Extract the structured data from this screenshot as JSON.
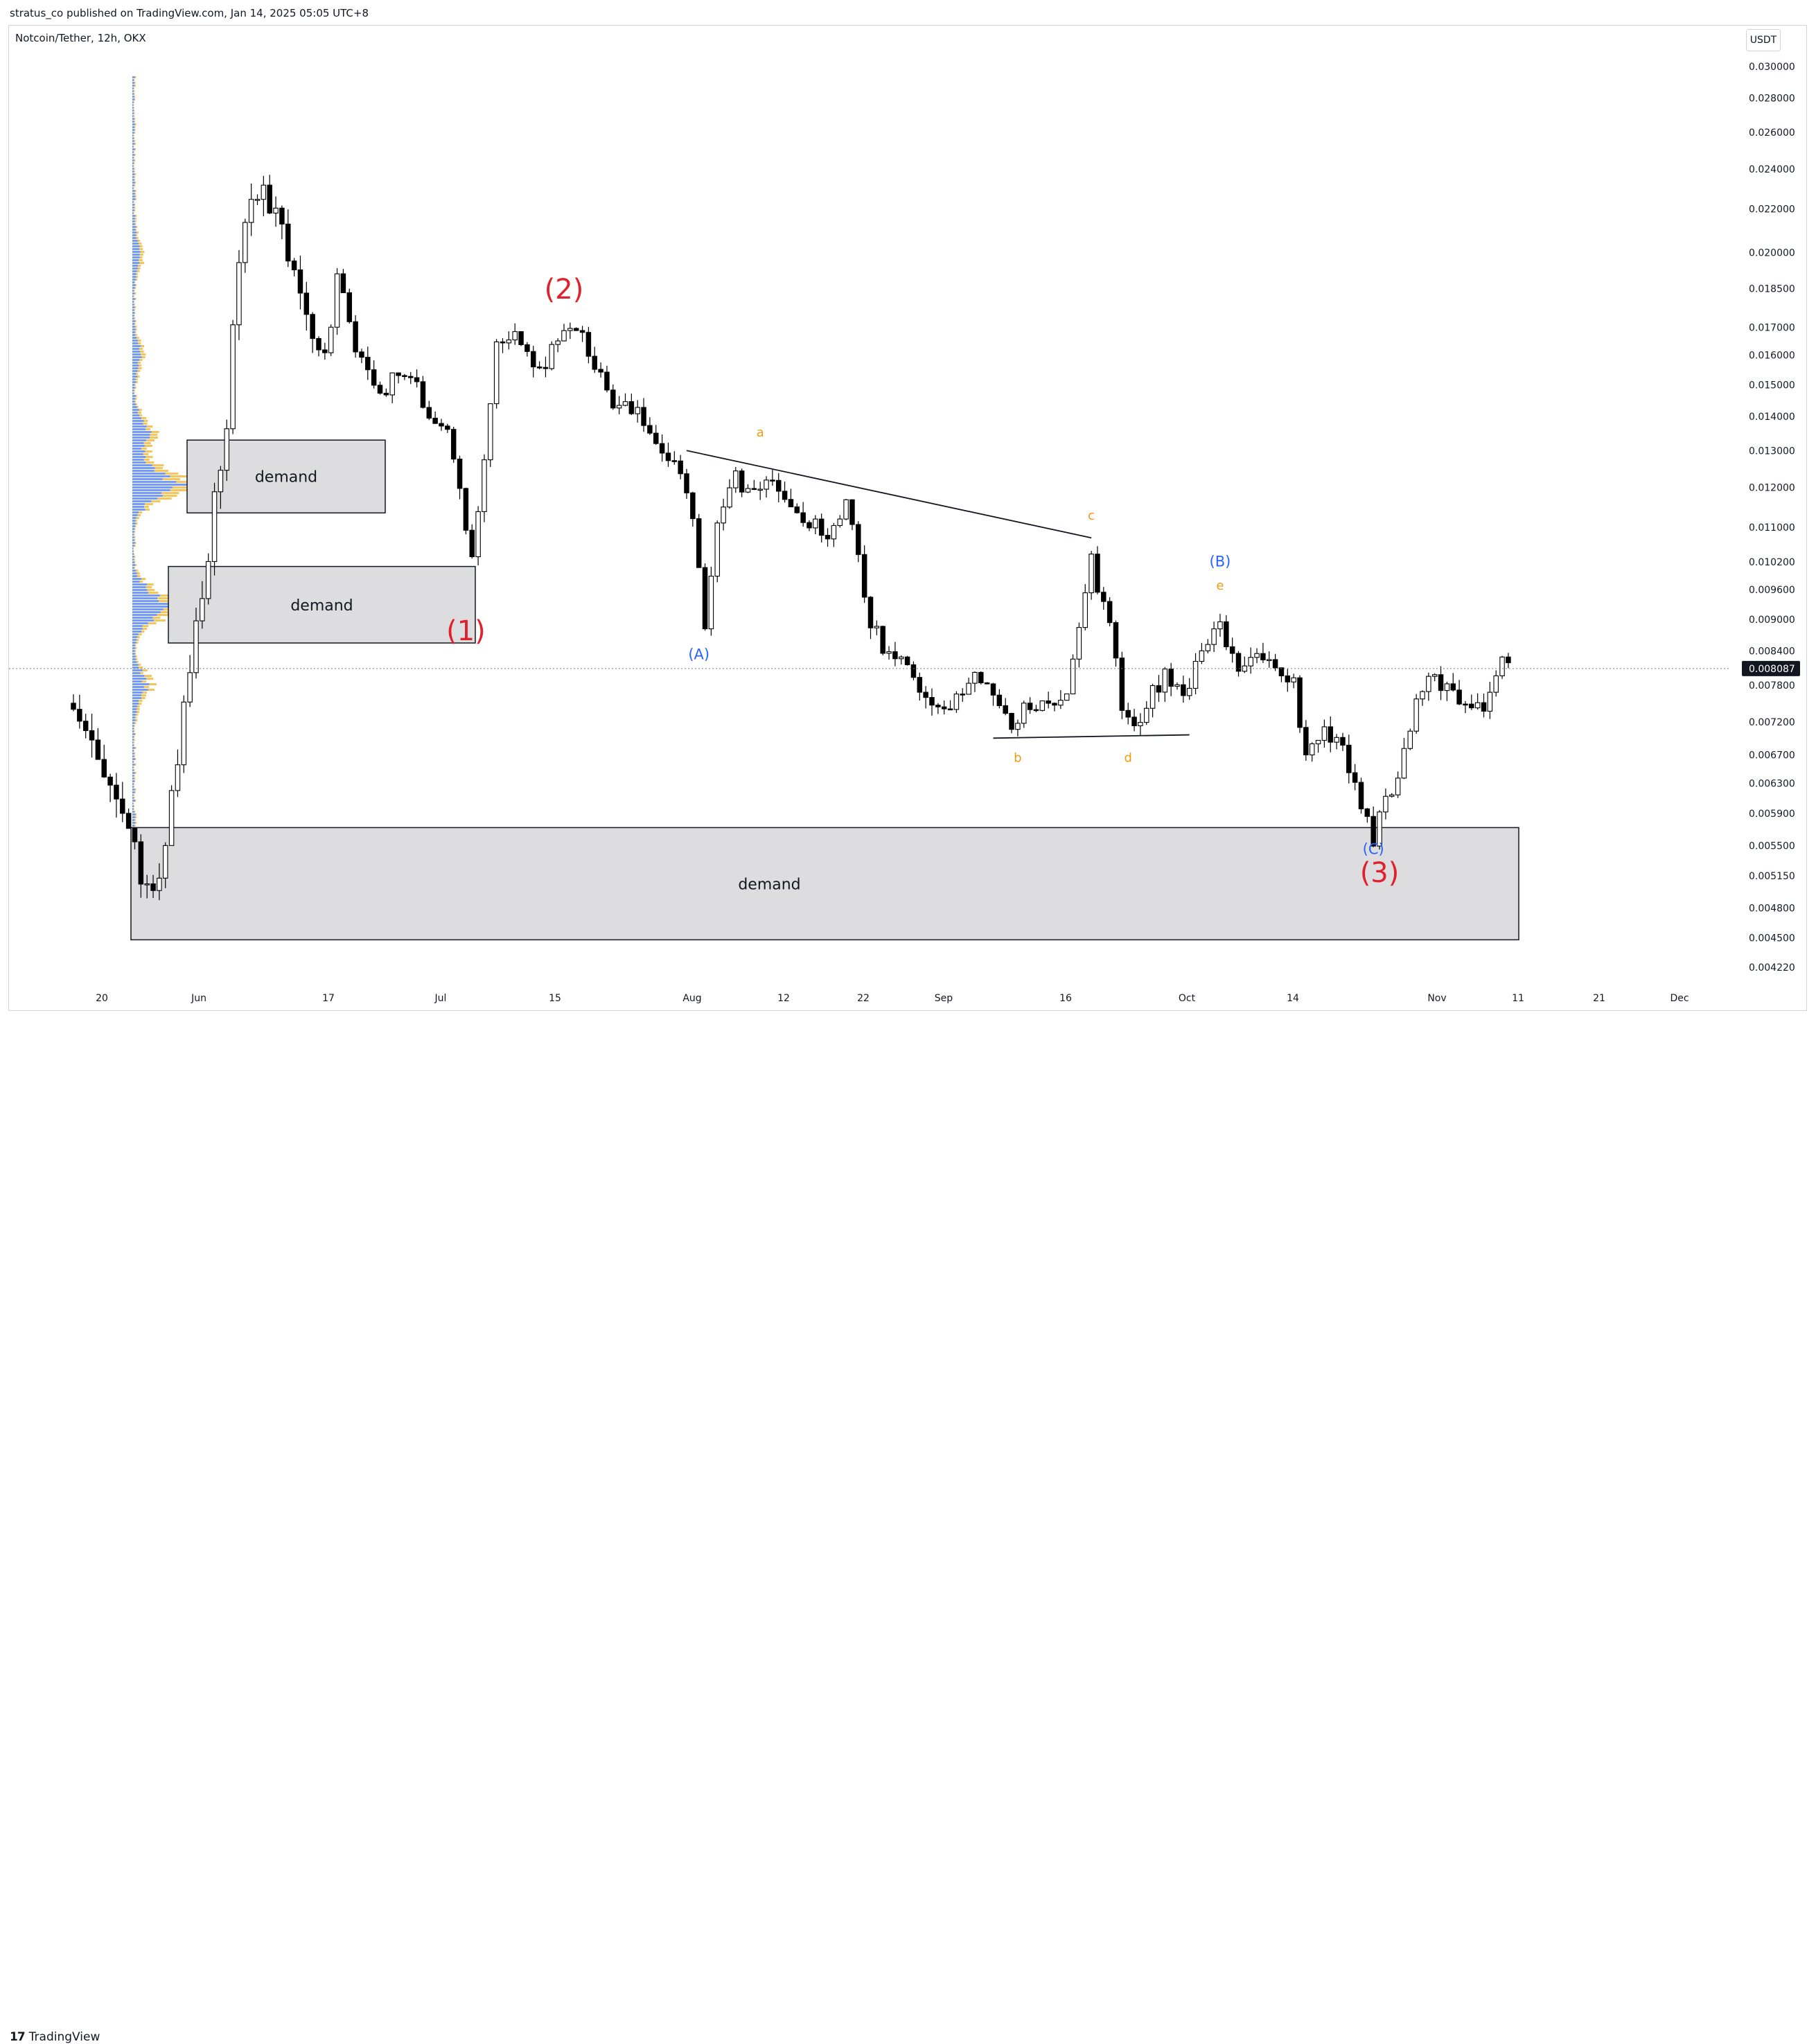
{
  "header": {
    "publisher": "stratus_co published on TradingView.com, Jan 14, 2025 05:05 UTC+8",
    "symbol": "Notcoin/Tether, 12h, OKX",
    "currency_button": "USDT"
  },
  "footer": {
    "brand_glyph": "17",
    "brand_name": "TradingView"
  },
  "colors": {
    "bull": "#ffffff",
    "bear": "#000000",
    "wick": "#000000",
    "zone_fill": "#dddde0",
    "label_red": "#e0202b",
    "label_blue": "#2962ff",
    "label_orange": "#f59a10",
    "vp_blue": "#5b8af5",
    "vp_orange": "#f5bb3c"
  },
  "chart_data": {
    "type": "candlestick",
    "scale": "log",
    "y_ticks": [
      "0.030000",
      "0.028000",
      "0.026000",
      "0.024000",
      "0.022000",
      "0.020000",
      "0.018500",
      "0.017000",
      "0.016000",
      "0.015000",
      "0.014000",
      "0.013000",
      "0.012000",
      "0.011000",
      "0.010200",
      "0.009600",
      "0.009000",
      "0.008400",
      "0.007800",
      "0.007200",
      "0.006700",
      "0.006300",
      "0.005900",
      "0.005500",
      "0.005150",
      "0.004800",
      "0.004500",
      "0.004220"
    ],
    "x_ticks": [
      "20",
      "Jun",
      "17",
      "Jul",
      "15",
      "Aug",
      "12",
      "22",
      "Sep",
      "16",
      "Oct",
      "14",
      "Nov",
      "11",
      "21",
      "Dec"
    ],
    "last_price": "0.008087",
    "price_anchors": [
      [
        0,
        0.0075
      ],
      [
        3,
        0.0068
      ],
      [
        8,
        0.0058
      ],
      [
        11,
        0.0052
      ],
      [
        13,
        0.0049
      ],
      [
        16,
        0.006
      ],
      [
        19,
        0.0082
      ],
      [
        22,
        0.0105
      ],
      [
        25,
        0.014
      ],
      [
        27,
        0.02
      ],
      [
        29,
        0.0228
      ],
      [
        32,
        0.0222
      ],
      [
        35,
        0.02
      ],
      [
        38,
        0.0172
      ],
      [
        41,
        0.0158
      ],
      [
        43,
        0.019
      ],
      [
        46,
        0.0162
      ],
      [
        50,
        0.0148
      ],
      [
        54,
        0.0155
      ],
      [
        58,
        0.0142
      ],
      [
        61,
        0.0134
      ],
      [
        63,
        0.0118
      ],
      [
        65,
        0.0102
      ],
      [
        67,
        0.013
      ],
      [
        69,
        0.0162
      ],
      [
        72,
        0.0168
      ],
      [
        76,
        0.0154
      ],
      [
        78,
        0.0163
      ],
      [
        82,
        0.017
      ],
      [
        85,
        0.0158
      ],
      [
        88,
        0.0145
      ],
      [
        92,
        0.014
      ],
      [
        96,
        0.0132
      ],
      [
        99,
        0.0125
      ],
      [
        101,
        0.0112
      ],
      [
        103,
        0.0088
      ],
      [
        105,
        0.0112
      ],
      [
        108,
        0.0122
      ],
      [
        111,
        0.0118
      ],
      [
        113,
        0.0123
      ],
      [
        116,
        0.0115
      ],
      [
        120,
        0.0112
      ],
      [
        123,
        0.0108
      ],
      [
        126,
        0.0115
      ],
      [
        128,
        0.0103
      ],
      [
        130,
        0.009
      ],
      [
        133,
        0.0083
      ],
      [
        137,
        0.008
      ],
      [
        140,
        0.0075
      ],
      [
        143,
        0.0073
      ],
      [
        146,
        0.008
      ],
      [
        149,
        0.0077
      ],
      [
        153,
        0.0072
      ],
      [
        156,
        0.0075
      ],
      [
        159,
        0.0074
      ],
      [
        162,
        0.0077
      ],
      [
        164,
        0.0088
      ],
      [
        166,
        0.0102
      ],
      [
        169,
        0.0088
      ],
      [
        171,
        0.0075
      ],
      [
        173,
        0.0071
      ],
      [
        175,
        0.0075
      ],
      [
        178,
        0.008
      ],
      [
        181,
        0.0076
      ],
      [
        184,
        0.0083
      ],
      [
        187,
        0.009
      ],
      [
        190,
        0.008
      ],
      [
        193,
        0.0083
      ],
      [
        196,
        0.0081
      ],
      [
        199,
        0.0078
      ],
      [
        201,
        0.0066
      ],
      [
        204,
        0.007
      ],
      [
        207,
        0.0068
      ],
      [
        210,
        0.006
      ],
      [
        212,
        0.0056
      ],
      [
        214,
        0.006
      ],
      [
        216,
        0.0064
      ],
      [
        218,
        0.0072
      ],
      [
        221,
        0.0079
      ],
      [
        224,
        0.0077
      ],
      [
        227,
        0.0076
      ],
      [
        230,
        0.0074
      ],
      [
        232,
        0.0081
      ],
      [
        234,
        0.0082
      ]
    ],
    "volume_profile_peaks": [
      {
        "price": 0.0121,
        "weight": 1.0
      },
      {
        "price": 0.0093,
        "weight": 0.8
      },
      {
        "price": 0.0135,
        "weight": 0.35
      },
      {
        "price": 0.0053,
        "weight": 0.55
      },
      {
        "price": 0.0078,
        "weight": 0.3
      },
      {
        "price": 0.02,
        "weight": 0.15
      },
      {
        "price": 0.016,
        "weight": 0.15
      }
    ],
    "zones": [
      {
        "label": "demand",
        "top": 0.0133,
        "bottom": 0.01135
      },
      {
        "label": "demand",
        "top": 0.0101,
        "bottom": 0.00855
      },
      {
        "label": "demand",
        "top": 0.00572,
        "bottom": 0.00448
      }
    ],
    "trendlines": [
      {
        "label": "triangle-upper",
        "from": [
          100,
          0.013
        ],
        "to": [
          166,
          0.01075
        ]
      },
      {
        "label": "triangle-lower",
        "from": [
          150,
          0.00695
        ],
        "to": [
          182,
          0.007
        ]
      }
    ],
    "wave_labels": [
      {
        "text": "(1)",
        "color": "red",
        "bar": 64,
        "price": 0.0086
      },
      {
        "text": "(2)",
        "color": "red",
        "bar": 80,
        "price": 0.0181
      },
      {
        "text": "(3)",
        "color": "red",
        "bar": 213,
        "price": 0.00508
      },
      {
        "text": "(A)",
        "color": "blue",
        "bar": 102,
        "price": 0.00825
      },
      {
        "text": "(B)",
        "color": "blue",
        "bar": 187,
        "price": 0.0101
      },
      {
        "text": "(C)",
        "color": "blue",
        "bar": 212,
        "price": 0.0054
      },
      {
        "text": "a",
        "color": "orange",
        "bar": 112,
        "price": 0.0134
      },
      {
        "text": "b",
        "color": "orange",
        "bar": 154,
        "price": 0.0066
      },
      {
        "text": "c",
        "color": "orange",
        "bar": 166,
        "price": 0.01118
      },
      {
        "text": "d",
        "color": "orange",
        "bar": 172,
        "price": 0.0066
      },
      {
        "text": "e",
        "color": "orange",
        "bar": 187,
        "price": 0.0096
      }
    ]
  }
}
